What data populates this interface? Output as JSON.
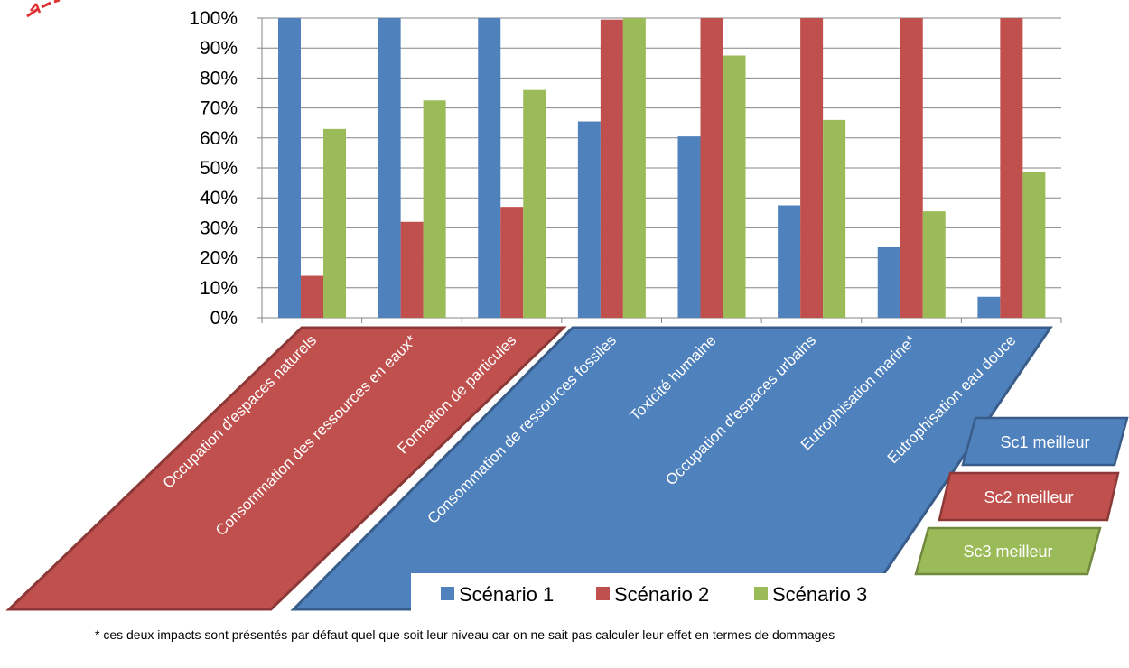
{
  "chart_data": {
    "type": "bar",
    "categories": [
      "Occupation d'espaces naturels",
      "Consommation des ressources en eaux*",
      "Formation de particules",
      "Consommation de ressources fossiles",
      "Toxicité humaine",
      "Occupation d'espaces urbains",
      "Eutrophisation marine*",
      "Eutrophisation eau douce"
    ],
    "series": [
      {
        "name": "Scénario 1",
        "color": "#4F81BD",
        "values": [
          100,
          100,
          100,
          65.5,
          60.5,
          37.5,
          23.5,
          7
        ]
      },
      {
        "name": "Scénario 2",
        "color": "#C0504D",
        "values": [
          14,
          32,
          37,
          99.5,
          100,
          100,
          100,
          100
        ]
      },
      {
        "name": "Scénario 3",
        "color": "#9BBB59",
        "values": [
          63,
          72.5,
          76,
          100,
          87.5,
          66,
          35.5,
          48.5
        ]
      }
    ],
    "yticks": [
      "0%",
      "10%",
      "20%",
      "30%",
      "40%",
      "50%",
      "60%",
      "70%",
      "80%",
      "90%",
      "100%"
    ],
    "ylim": [
      0,
      100
    ],
    "grid": true,
    "legend_position": "bottom"
  },
  "group_colors": {
    "sc2_best": "#C0504D",
    "sc1_best": "#4F81BD",
    "sc3_best": "#9BBB59"
  },
  "side_boxes": [
    {
      "label": "Sc1 meilleur",
      "color": "#4F81BD"
    },
    {
      "label": "Sc2 meilleur",
      "color": "#C0504D"
    },
    {
      "label": "Sc3 meilleur",
      "color": "#9BBB59"
    }
  ],
  "footnote": "* ces deux impacts sont présentés par défaut quel que soit leur niveau car on ne sait pas calculer leur effet en termes de dommages"
}
